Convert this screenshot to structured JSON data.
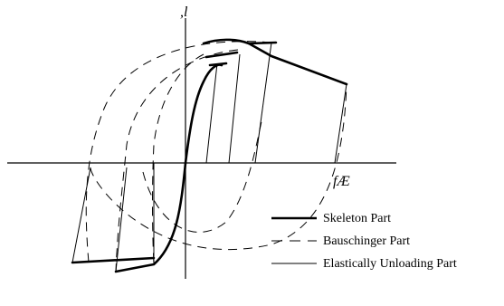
{
  "axes": {
    "y_label": ",l",
    "x_label": "fÆ"
  },
  "legend": [
    {
      "label": "Skeleton Part",
      "style": "solid-thick"
    },
    {
      "label": "Bauschinger Part",
      "style": "dashed"
    },
    {
      "label": "Elastically Unloading Part",
      "style": "solid-thin"
    }
  ]
}
